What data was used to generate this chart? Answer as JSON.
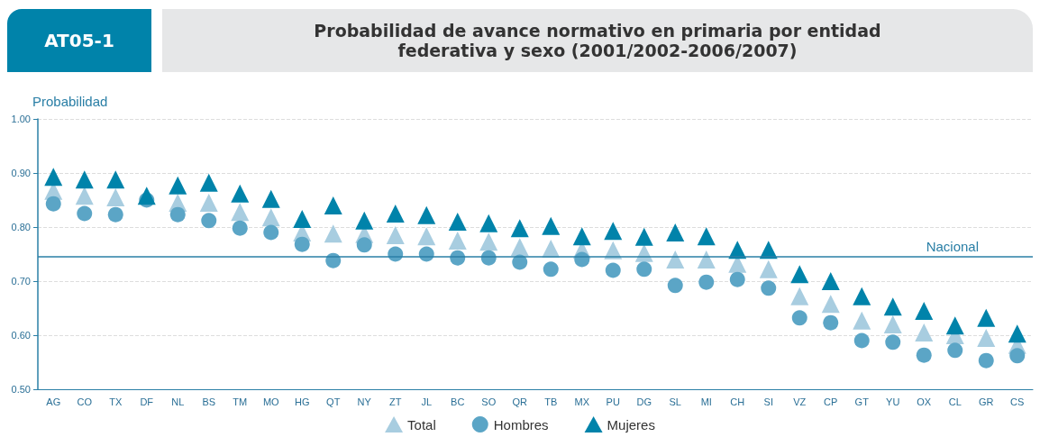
{
  "chart_data": {
    "type": "scatter",
    "title": "Probabilidad de avance normativo en primaria por entidad federativa y sexo (2001/2002-2006/2007)",
    "annotations": [
      "AT05-1"
    ],
    "ylabel": "Probabilidad",
    "categories": [
      "AG",
      "CO",
      "TX",
      "DF",
      "NL",
      "BS",
      "TM",
      "MO",
      "HG",
      "QT",
      "NY",
      "ZT",
      "JL",
      "BC",
      "SO",
      "QR",
      "TB",
      "MX",
      "PU",
      "DG",
      "SL",
      "MI",
      "CH",
      "SI",
      "VZ",
      "CP",
      "GT",
      "YU",
      "OX",
      "CL",
      "GR",
      "CS"
    ],
    "series": [
      {
        "name": "Total",
        "color": "#a8cde0",
        "marker": "triangle",
        "values": [
          0.867,
          0.858,
          0.855,
          null,
          0.845,
          0.845,
          0.828,
          0.818,
          0.79,
          0.788,
          0.787,
          0.785,
          0.783,
          0.775,
          0.773,
          0.763,
          0.76,
          0.758,
          0.757,
          0.752,
          0.74,
          0.74,
          0.732,
          0.722,
          0.672,
          0.658,
          0.627,
          0.62,
          0.605,
          0.6,
          0.595,
          0.582
        ]
      },
      {
        "name": "Hombres",
        "color": "#5ba5c6",
        "marker": "circle",
        "values": [
          0.843,
          0.825,
          0.823,
          0.85,
          0.823,
          0.812,
          0.798,
          0.79,
          0.768,
          0.738,
          0.767,
          0.75,
          0.75,
          0.743,
          0.743,
          0.735,
          0.722,
          0.74,
          0.72,
          0.722,
          0.692,
          0.698,
          0.703,
          0.687,
          0.632,
          0.623,
          0.59,
          0.587,
          0.563,
          0.572,
          0.553,
          0.562
        ]
      },
      {
        "name": "Mujeres",
        "color": "#0083aa",
        "marker": "triangle",
        "values": [
          0.893,
          0.888,
          0.888,
          0.858,
          0.877,
          0.882,
          0.862,
          0.852,
          0.815,
          0.84,
          0.812,
          0.825,
          0.822,
          0.81,
          0.807,
          0.798,
          0.802,
          0.783,
          0.793,
          0.782,
          0.79,
          0.783,
          0.758,
          0.758,
          0.713,
          0.7,
          0.672,
          0.653,
          0.645,
          0.618,
          0.632,
          0.603
        ]
      }
    ],
    "ylim": [
      0.5,
      1.0
    ],
    "yticks": [
      {
        "value": 0.5,
        "label": "0.50"
      },
      {
        "value": 0.6,
        "label": "0.60"
      },
      {
        "value": 0.7,
        "label": "0.70"
      },
      {
        "value": 0.8,
        "label": "0.80"
      },
      {
        "value": 0.9,
        "label": "0.90"
      },
      {
        "value": 1.0,
        "label": "1.00"
      }
    ],
    "ref_lines": [
      {
        "axis": "y",
        "value": 0.745,
        "label": "Nacional",
        "color": "#2a7fa6"
      }
    ],
    "grid": "y",
    "legend": "bottom"
  }
}
